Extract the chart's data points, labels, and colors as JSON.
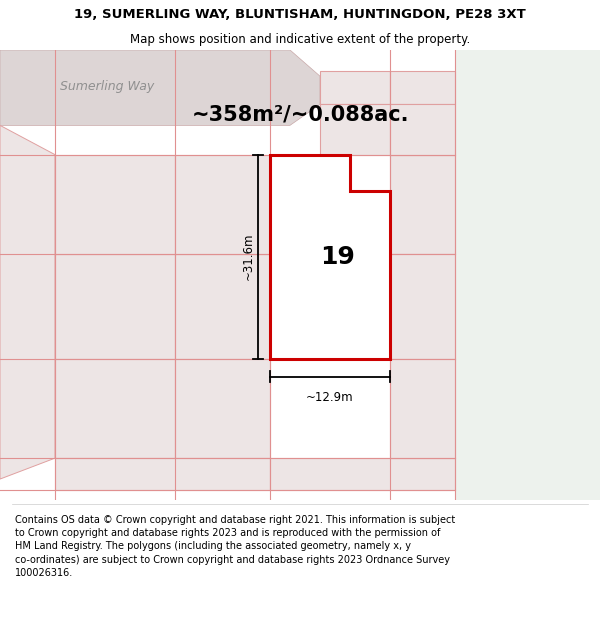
{
  "title": "19, SUMERLING WAY, BLUNTISHAM, HUNTINGDON, PE28 3XT",
  "subtitle": "Map shows position and indicative extent of the property.",
  "footer": "Contains OS data © Crown copyright and database right 2021. This information is subject\nto Crown copyright and database rights 2023 and is reproduced with the permission of\nHM Land Registry. The polygons (including the associated geometry, namely x, y\nco-ordinates) are subject to Crown copyright and database rights 2023 Ordnance Survey\n100026316.",
  "area_label": "~358m²/~0.088ac.",
  "number_label": "19",
  "dim_height_label": "~31.6m",
  "dim_width_label": "~12.9m",
  "street_label": "Sumerling Way",
  "bg_map_color": "#f5eded",
  "bg_right_color": "#edf2ed",
  "plot_fill_color": "#ffffff",
  "plot_edge_color": "#cc0000",
  "neighbor_fill_color": "#ede5e5",
  "neighbor_edge_color": "#e0a0a0",
  "road_fill_color": "#ddd5d5",
  "road_text_color": "#909090",
  "dim_line_color": "#000000",
  "title_fontsize": 9.5,
  "subtitle_fontsize": 8.5,
  "footer_fontsize": 7.0,
  "area_label_fontsize": 15,
  "number_label_fontsize": 18,
  "dim_label_fontsize": 8.5,
  "street_fontsize": 9
}
